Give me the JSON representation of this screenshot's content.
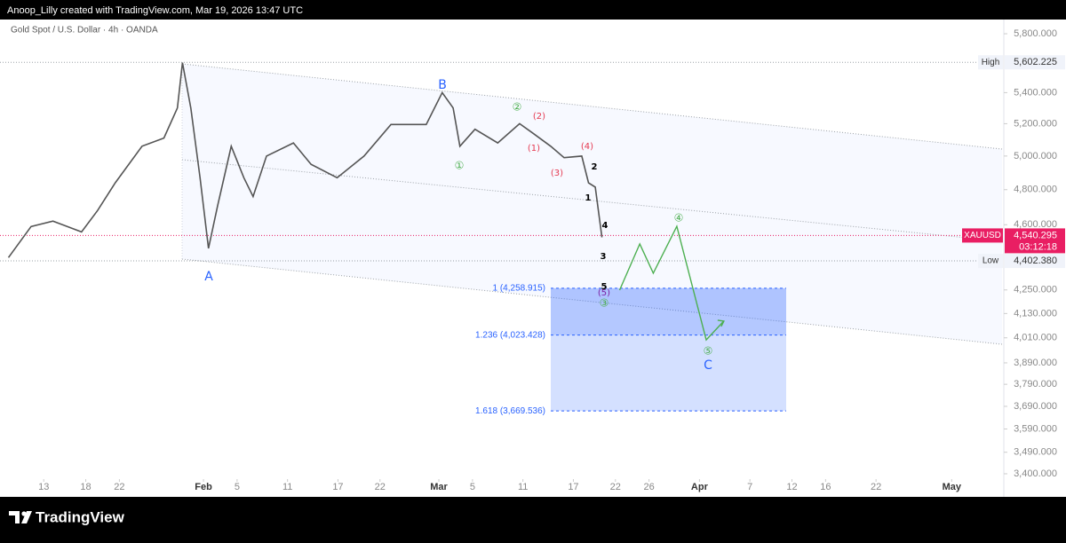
{
  "header": {
    "text": "Anoop_Lilly created with TradingView.com, Mar 19, 2026 13:47 UTC",
    "brand": "TradingView"
  },
  "chart_data": {
    "type": "line",
    "title": "Gold Spot / U.S. Dollar · 4h · OANDA",
    "log_scale": true,
    "xlim": [
      7.8,
      127.2
    ],
    "ylim": [
      3378,
      5901
    ],
    "xticks": [
      {
        "value": 13,
        "label": "13"
      },
      {
        "value": 18,
        "label": "18"
      },
      {
        "value": 22,
        "label": "22"
      },
      {
        "value": 32,
        "label": "Feb"
      },
      {
        "value": 36,
        "label": "5"
      },
      {
        "value": 42,
        "label": "11"
      },
      {
        "value": 48,
        "label": "17"
      },
      {
        "value": 53,
        "label": "22"
      },
      {
        "value": 60,
        "label": "Mar"
      },
      {
        "value": 64,
        "label": "5"
      },
      {
        "value": 70,
        "label": "11"
      },
      {
        "value": 76,
        "label": "17"
      },
      {
        "value": 81,
        "label": "22"
      },
      {
        "value": 85,
        "label": "26"
      },
      {
        "value": 91,
        "label": "Apr"
      },
      {
        "value": 97,
        "label": "7"
      },
      {
        "value": 102,
        "label": "12"
      },
      {
        "value": 106,
        "label": "16"
      },
      {
        "value": 112,
        "label": "22"
      },
      {
        "value": 121,
        "label": "May"
      }
    ],
    "yticks": [
      {
        "value": 5800,
        "label": "5,800.000"
      },
      {
        "value": 5400,
        "label": "5,400.000"
      },
      {
        "value": 5200,
        "label": "5,200.000"
      },
      {
        "value": 5000,
        "label": "5,000.000"
      },
      {
        "value": 4800,
        "label": "4,800.000"
      },
      {
        "value": 4600,
        "label": "4,600.000"
      },
      {
        "value": 4250,
        "label": "4,250.000"
      },
      {
        "value": 4130,
        "label": "4,130.000"
      },
      {
        "value": 4010,
        "label": "4,010.000"
      },
      {
        "value": 3890,
        "label": "3,890.000"
      },
      {
        "value": 3790,
        "label": "3,790.000"
      },
      {
        "value": 3690,
        "label": "3,690.000"
      },
      {
        "value": 3590,
        "label": "3,590.000"
      },
      {
        "value": 3490,
        "label": "3,490.000"
      },
      {
        "value": 3400,
        "label": "3,400.000"
      }
    ],
    "series": [
      {
        "name": "XAUUSD",
        "color": "#555555",
        "x": [
          8.8,
          11.5,
          14.1,
          17.5,
          19.4,
          21.5,
          24.7,
          27.3,
          28.9,
          29.5,
          30.5,
          31.6,
          32.6,
          33.7,
          35.3,
          36.8,
          37.9,
          39.5,
          42.7,
          44.8,
          47.9,
          51.1,
          54.3,
          58.5,
          60.4,
          61.7,
          62.5,
          64.3,
          67.0,
          69.6,
          71.2,
          73.3,
          74.9,
          77.0,
          77.8,
          78.6,
          79.4
        ],
        "values": [
          4420,
          4590,
          4620,
          4560,
          4680,
          4840,
          5060,
          5110,
          5300,
          5600,
          5300,
          4870,
          4470,
          4710,
          5060,
          4870,
          4760,
          5000,
          5080,
          4950,
          4870,
          5000,
          5195,
          5195,
          5400,
          5300,
          5060,
          5165,
          5080,
          5200,
          5140,
          5060,
          4990,
          5000,
          4840,
          4815,
          4530
        ]
      },
      {
        "color": "#4caf50",
        "x": [
          81.5,
          83.9,
          85.5,
          88.3,
          91.8,
          93.9
        ],
        "values": [
          4249,
          4494,
          4337,
          4591,
          4000,
          4092
        ]
      }
    ],
    "price_tags": [
      {
        "label": "High",
        "value": 5602.225,
        "value_label": "5,602.225"
      },
      {
        "label": "XAUUSD",
        "value": 4540.295,
        "value_label": "4,540.295",
        "countdown": "03:12:18"
      },
      {
        "label": "Low",
        "value": 4402.38,
        "value_label": "4,402.380"
      }
    ],
    "fib_levels": [
      {
        "label": "1 (4,258.915)",
        "value": 4258.915
      },
      {
        "label": "1.236 (4,023.428)",
        "value": 4023.428
      },
      {
        "label": "1.618 (3,669.536)",
        "value": 3669.536
      }
    ],
    "wave_labels": [
      "A",
      "B",
      "C",
      "①",
      "②",
      "③",
      "④",
      "⑤",
      "(1)",
      "(2)",
      "(3)",
      "(4)",
      "(5)",
      "1",
      "2",
      "3",
      "4",
      "5"
    ]
  }
}
